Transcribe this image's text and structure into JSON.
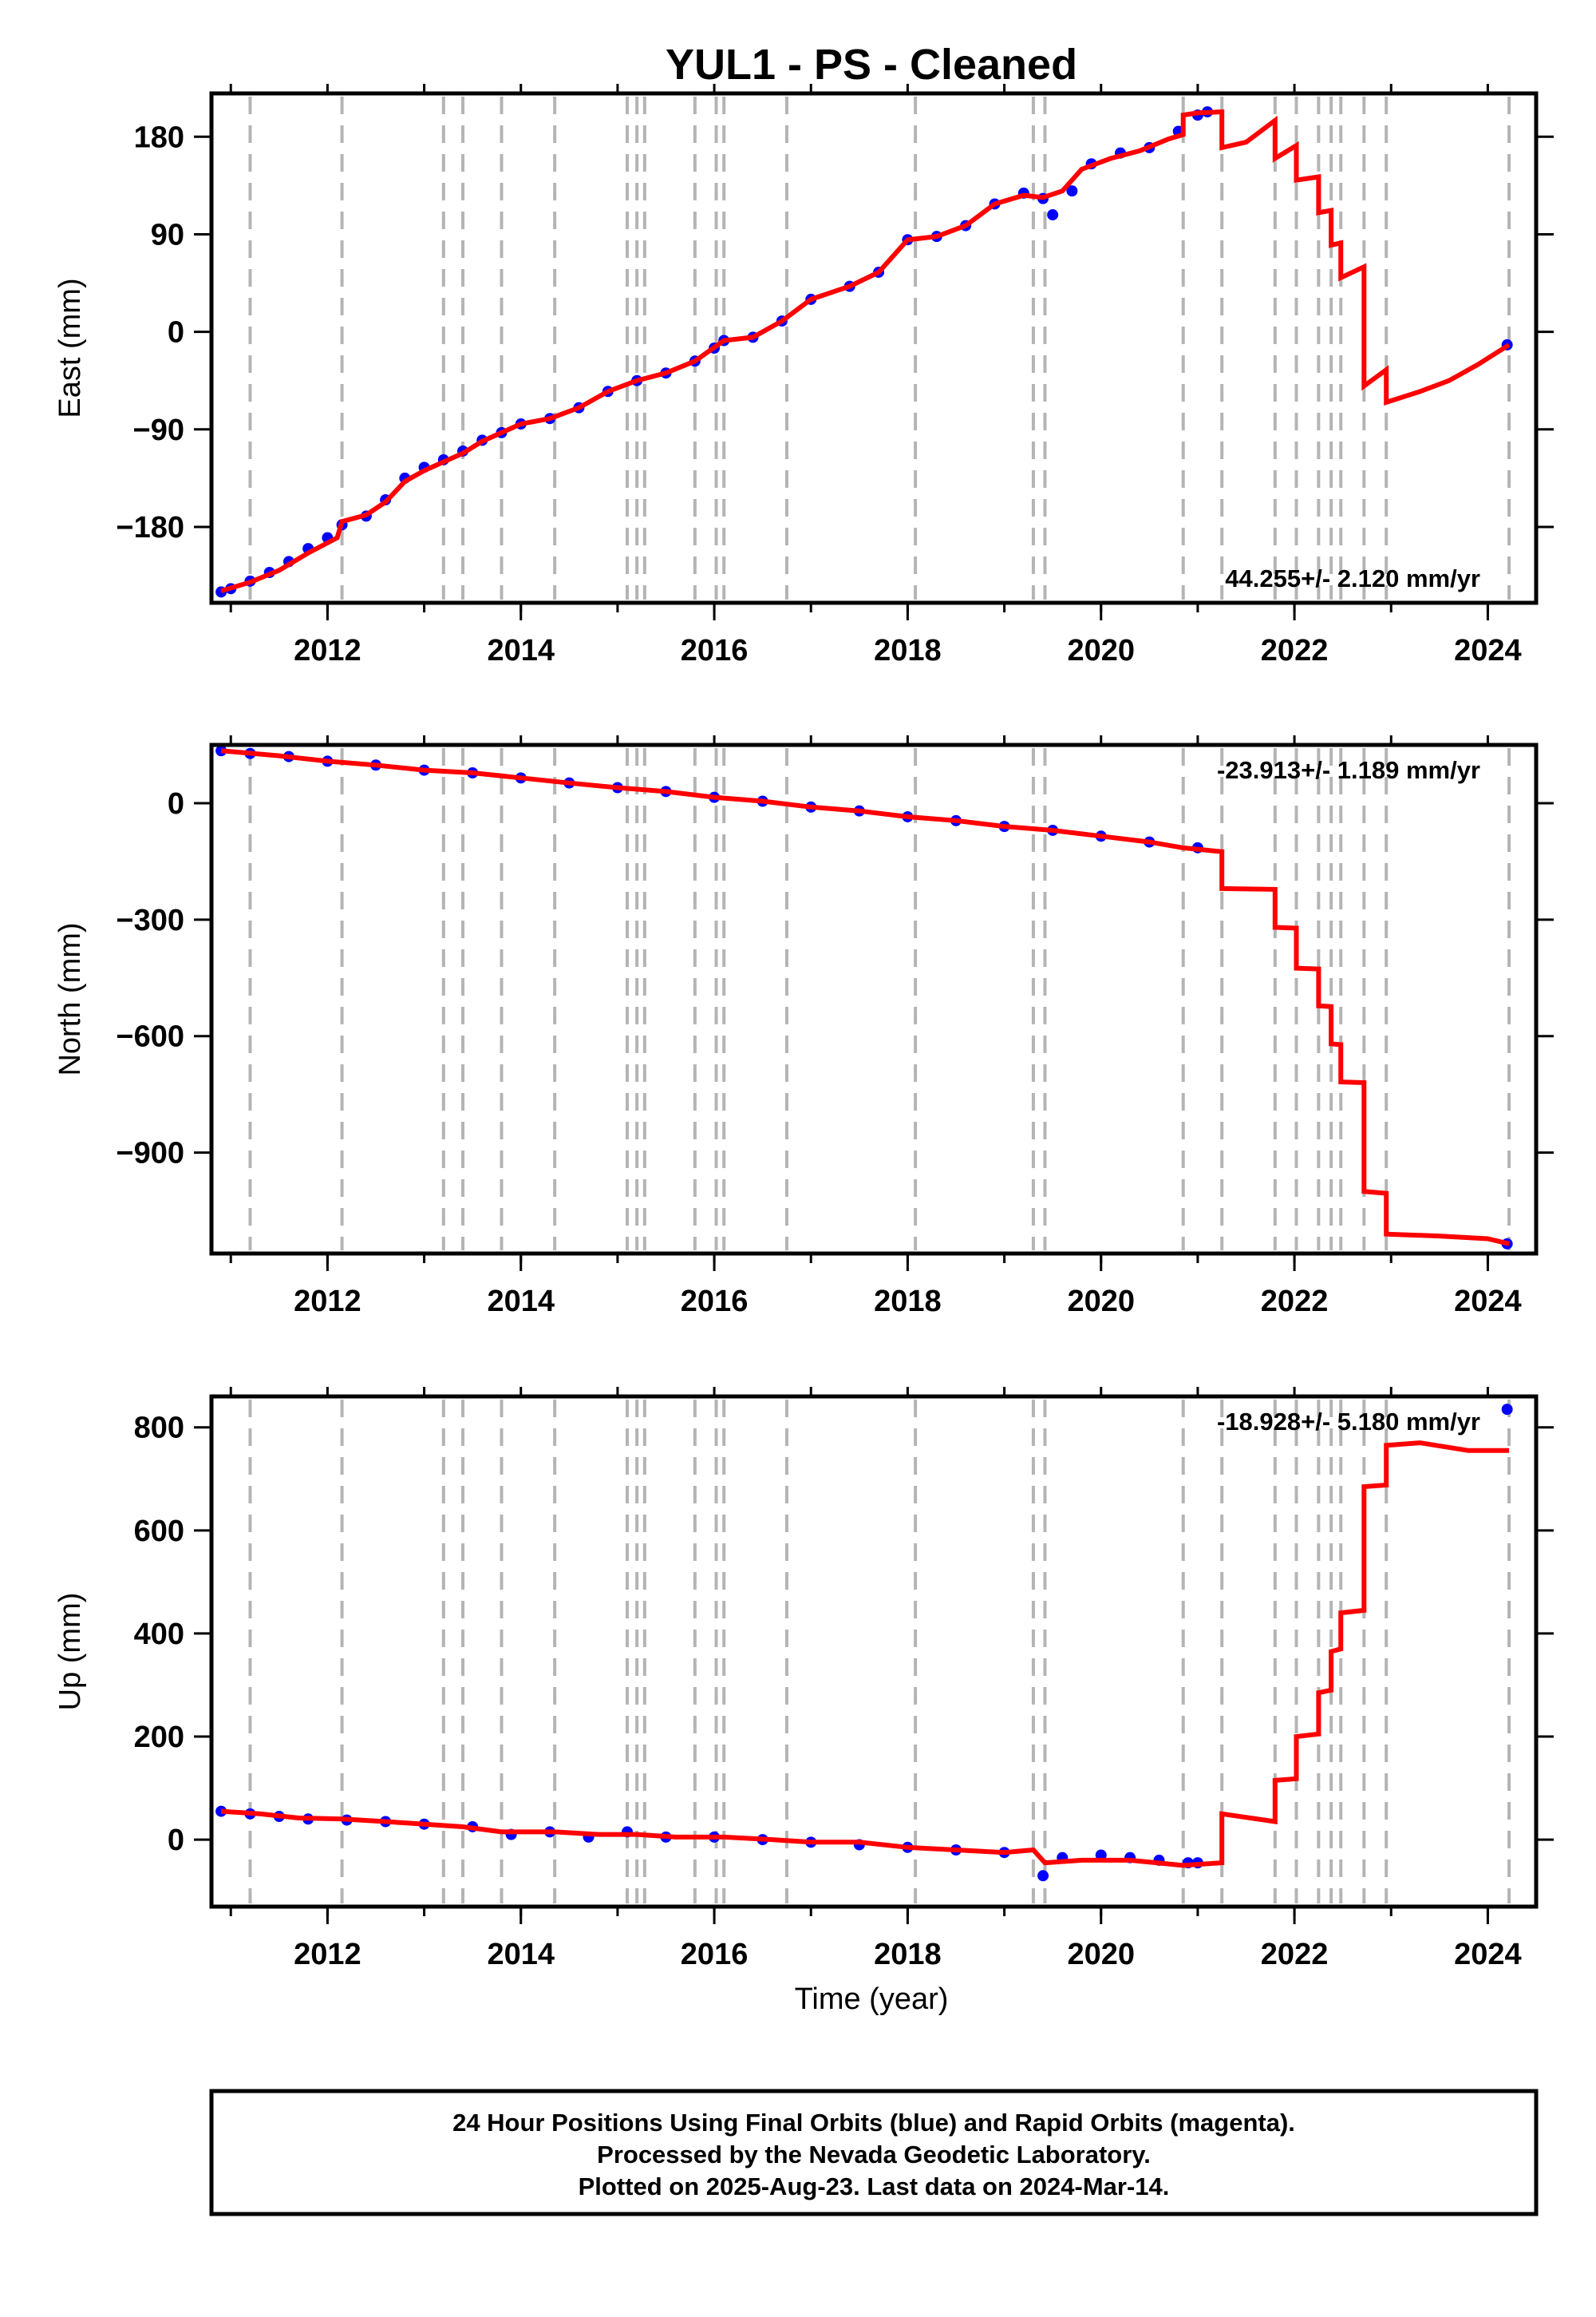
{
  "title": "YUL1  - PS - Cleaned",
  "xlabel": "Time (year)",
  "colors": {
    "data": "#0000ff",
    "model": "#ff0000",
    "event_line": "#b4b4b4"
  },
  "footer": {
    "line1": "24 Hour Positions Using Final Orbits (blue) and Rapid Orbits (magenta).",
    "line2": "Processed by the Nevada Geodetic Laboratory.",
    "line3": "Plotted on 2025-Aug-23. Last data on 2024-Mar-14."
  },
  "chart_data": [
    {
      "type": "scatter",
      "component": "east",
      "ylabel": "East (mm)",
      "rate": "44.255+/- 2.120 mm/yr",
      "rate_position": "bottom-right",
      "xlim": [
        2010.8,
        2024.5
      ],
      "ylim": [
        -250,
        220
      ],
      "xticks": [
        2012,
        2014,
        2016,
        2018,
        2020,
        2022,
        2024
      ],
      "yticks": [
        -180,
        -90,
        0,
        90,
        180
      ],
      "ytick_labels": [
        "−180",
        "−90",
        "0",
        "90",
        "180"
      ],
      "grid": false,
      "event_lines": [
        2011.2,
        2012.15,
        2013.2,
        2013.4,
        2013.8,
        2014.35,
        2015.1,
        2015.2,
        2015.28,
        2015.8,
        2016.02,
        2016.1,
        2016.75,
        2018.08,
        2019.3,
        2019.42,
        2020.85,
        2021.25,
        2021.8,
        2022.02,
        2022.25,
        2022.38,
        2022.48,
        2022.72,
        2022.95,
        2024.22
      ],
      "series": [
        {
          "kind": "points",
          "x": [
            2010.9,
            2011.0,
            2011.2,
            2011.4,
            2011.6,
            2011.8,
            2012.0,
            2012.15,
            2012.4,
            2012.6,
            2012.8,
            2013.0,
            2013.2,
            2013.4,
            2013.6,
            2013.8,
            2014.0,
            2014.3,
            2014.6,
            2014.9,
            2015.2,
            2015.5,
            2015.8,
            2016.0,
            2016.1,
            2016.4,
            2016.7,
            2017.0,
            2017.4,
            2017.7,
            2018.0,
            2018.3,
            2018.6,
            2018.9,
            2019.2,
            2019.4,
            2019.5,
            2019.7,
            2019.9,
            2020.2,
            2020.5,
            2020.8,
            2021.0,
            2021.1,
            2024.2
          ],
          "y": [
            -240,
            -237,
            -230,
            -222,
            -212,
            -200,
            -190,
            -178,
            -170,
            -155,
            -135,
            -125,
            -118,
            -110,
            -100,
            -93,
            -85,
            -80,
            -70,
            -55,
            -45,
            -38,
            -27,
            -15,
            -8,
            -5,
            10,
            30,
            42,
            55,
            85,
            88,
            98,
            118,
            128,
            123,
            108,
            130,
            155,
            165,
            170,
            185,
            200,
            203,
            -12
          ]
        },
        {
          "kind": "line",
          "x": [
            2010.9,
            2011.2,
            2011.5,
            2011.8,
            2012.1,
            2012.15,
            2012.4,
            2012.6,
            2012.8,
            2013.0,
            2013.2,
            2013.4,
            2013.6,
            2013.8,
            2014.0,
            2014.3,
            2014.6,
            2014.9,
            2015.2,
            2015.5,
            2015.8,
            2016.1,
            2016.4,
            2016.7,
            2017.0,
            2017.4,
            2017.7,
            2018.0,
            2018.3,
            2018.6,
            2018.9,
            2019.2,
            2019.4,
            2019.6,
            2019.8,
            2020.1,
            2020.4,
            2020.7,
            2020.85,
            2020.85,
            2021.0,
            2021.25,
            2021.25,
            2021.5,
            2021.8,
            2021.8,
            2022.02,
            2022.02,
            2022.25,
            2022.25,
            2022.38,
            2022.38,
            2022.48,
            2022.48,
            2022.72,
            2022.72,
            2022.95,
            2022.95,
            2023.3,
            2023.6,
            2023.9,
            2024.22
          ],
          "y": [
            -239,
            -231,
            -220,
            -204,
            -190,
            -175,
            -169,
            -157,
            -138,
            -128,
            -120,
            -112,
            -101,
            -93,
            -85,
            -80,
            -70,
            -55,
            -45,
            -38,
            -27,
            -8,
            -5,
            10,
            30,
            42,
            55,
            85,
            88,
            98,
            118,
            126,
            124,
            130,
            150,
            160,
            167,
            178,
            182,
            200,
            202,
            203,
            170,
            175,
            195,
            160,
            172,
            140,
            143,
            110,
            112,
            80,
            82,
            50,
            60,
            -50,
            -35,
            -65,
            -55,
            -45,
            -30,
            -12
          ]
        }
      ]
    },
    {
      "type": "scatter",
      "component": "north",
      "ylabel": "North (mm)",
      "rate": "-23.913+/- 1.189 mm/yr",
      "rate_position": "top-right",
      "xlim": [
        2010.8,
        2024.5
      ],
      "ylim": [
        -1160,
        150
      ],
      "xticks": [
        2012,
        2014,
        2016,
        2018,
        2020,
        2022,
        2024
      ],
      "yticks": [
        -900,
        -600,
        -300,
        0
      ],
      "ytick_labels": [
        "−900",
        "−600",
        "−300",
        "0"
      ],
      "grid": false,
      "event_lines": [
        2011.2,
        2012.15,
        2013.2,
        2013.4,
        2013.8,
        2014.35,
        2015.1,
        2015.2,
        2015.28,
        2015.8,
        2016.02,
        2016.1,
        2016.75,
        2018.08,
        2019.3,
        2019.42,
        2020.85,
        2021.25,
        2021.8,
        2022.02,
        2022.25,
        2022.38,
        2022.48,
        2022.72,
        2022.95,
        2024.22
      ],
      "series": [
        {
          "kind": "points",
          "x": [
            2010.9,
            2011.2,
            2011.6,
            2012.0,
            2012.5,
            2013.0,
            2013.5,
            2014.0,
            2014.5,
            2015.0,
            2015.5,
            2016.0,
            2016.5,
            2017.0,
            2017.5,
            2018.0,
            2018.5,
            2019.0,
            2019.5,
            2020.0,
            2020.5,
            2021.0,
            2024.2
          ],
          "y": [
            135,
            128,
            120,
            108,
            98,
            85,
            78,
            65,
            52,
            40,
            30,
            15,
            5,
            -10,
            -20,
            -35,
            -45,
            -60,
            -70,
            -85,
            -100,
            -115,
            -1135
          ]
        },
        {
          "kind": "line",
          "x": [
            2010.9,
            2011.5,
            2012.0,
            2012.5,
            2013.0,
            2013.5,
            2014.0,
            2014.5,
            2015.0,
            2015.5,
            2016.0,
            2016.5,
            2017.0,
            2017.5,
            2018.0,
            2018.5,
            2019.0,
            2019.5,
            2020.0,
            2020.5,
            2020.85,
            2021.25,
            2021.25,
            2021.8,
            2021.8,
            2022.02,
            2022.02,
            2022.25,
            2022.25,
            2022.38,
            2022.38,
            2022.48,
            2022.48,
            2022.72,
            2022.72,
            2022.95,
            2022.95,
            2023.5,
            2024.0,
            2024.22
          ],
          "y": [
            135,
            122,
            108,
            98,
            85,
            78,
            65,
            52,
            40,
            30,
            15,
            5,
            -10,
            -20,
            -35,
            -45,
            -60,
            -70,
            -85,
            -100,
            -115,
            -125,
            -220,
            -222,
            -320,
            -322,
            -425,
            -427,
            -522,
            -524,
            -620,
            -622,
            -718,
            -720,
            -1000,
            -1005,
            -1110,
            -1115,
            -1122,
            -1135
          ]
        }
      ]
    },
    {
      "type": "scatter",
      "component": "up",
      "ylabel": "Up (mm)",
      "rate": "-18.928+/- 5.180 mm/yr",
      "rate_position": "top-right",
      "xlim": [
        2010.8,
        2024.5
      ],
      "ylim": [
        -130,
        860
      ],
      "xticks": [
        2012,
        2014,
        2016,
        2018,
        2020,
        2022,
        2024
      ],
      "yticks": [
        0,
        200,
        400,
        600,
        800
      ],
      "ytick_labels": [
        "0",
        "200",
        "400",
        "600",
        "800"
      ],
      "grid": false,
      "event_lines": [
        2011.2,
        2012.15,
        2013.2,
        2013.4,
        2013.8,
        2014.35,
        2015.1,
        2015.2,
        2015.28,
        2015.8,
        2016.02,
        2016.1,
        2016.75,
        2018.08,
        2019.3,
        2019.42,
        2020.85,
        2021.25,
        2021.8,
        2022.02,
        2022.25,
        2022.38,
        2022.48,
        2022.72,
        2022.95,
        2024.22
      ],
      "series": [
        {
          "kind": "points",
          "x": [
            2010.9,
            2011.2,
            2011.5,
            2011.8,
            2012.2,
            2012.6,
            2013.0,
            2013.5,
            2013.9,
            2014.3,
            2014.7,
            2015.1,
            2015.5,
            2016.0,
            2016.5,
            2017.0,
            2017.5,
            2018.0,
            2018.5,
            2019.0,
            2019.4,
            2019.6,
            2020.0,
            2020.3,
            2020.6,
            2020.9,
            2021.0,
            2024.2
          ],
          "y": [
            55,
            50,
            45,
            40,
            38,
            35,
            30,
            25,
            10,
            15,
            5,
            15,
            5,
            5,
            0,
            -5,
            -10,
            -15,
            -20,
            -25,
            -70,
            -35,
            -30,
            -35,
            -40,
            -45,
            -45,
            835
          ]
        },
        {
          "kind": "line",
          "x": [
            2010.9,
            2011.3,
            2011.7,
            2012.15,
            2012.6,
            2013.0,
            2013.4,
            2013.8,
            2014.35,
            2014.8,
            2015.2,
            2015.6,
            2016.1,
            2016.6,
            2017.0,
            2017.5,
            2018.0,
            2018.5,
            2019.0,
            2019.3,
            2019.42,
            2019.8,
            2020.3,
            2020.85,
            2021.25,
            2021.25,
            2021.8,
            2021.8,
            2022.02,
            2022.02,
            2022.25,
            2022.25,
            2022.38,
            2022.38,
            2022.48,
            2022.48,
            2022.72,
            2022.72,
            2022.95,
            2022.95,
            2023.3,
            2023.8,
            2024.22
          ],
          "y": [
            55,
            50,
            42,
            40,
            35,
            30,
            25,
            15,
            15,
            10,
            10,
            5,
            5,
            0,
            -5,
            -5,
            -15,
            -20,
            -25,
            -20,
            -45,
            -40,
            -40,
            -50,
            -45,
            50,
            35,
            115,
            118,
            200,
            205,
            285,
            290,
            365,
            370,
            440,
            445,
            685,
            688,
            765,
            770,
            755,
            755
          ]
        }
      ]
    }
  ]
}
